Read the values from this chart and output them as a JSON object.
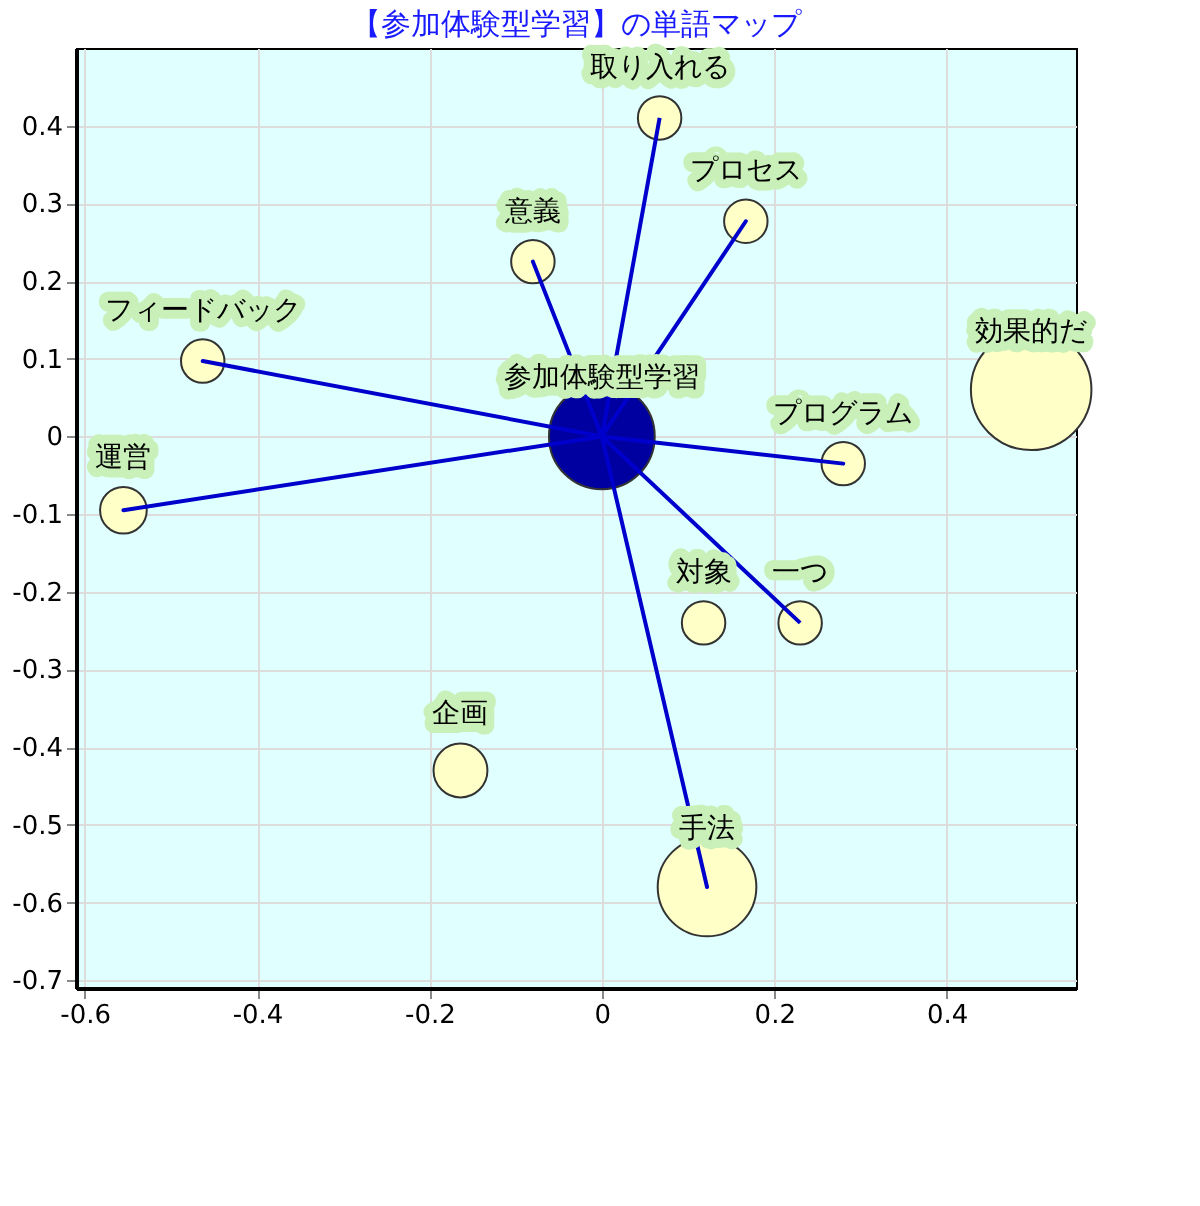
{
  "chart_data": {
    "type": "bubble",
    "title": "【参加体験型学習】の単語マップ",
    "xlim": [
      -0.61,
      0.55
    ],
    "ylim": [
      -0.71,
      0.5
    ],
    "xticks": [
      -0.6,
      -0.4,
      -0.2,
      {
        "value": 0,
        "label": "0"
      },
      0.2,
      0.4
    ],
    "yticks": [
      -0.7,
      -0.6,
      -0.5,
      -0.4,
      -0.3,
      -0.2,
      -0.1,
      {
        "value": 0,
        "label": "0"
      },
      0.1,
      0.2,
      0.3,
      0.4
    ],
    "grid": true,
    "legend": false,
    "series": [
      {
        "x": [
          0,
          0.067,
          0.167,
          -0.08,
          -0.463,
          -0.555,
          0.498,
          0.28,
          0.118,
          0.23,
          -0.164,
          0.122
        ],
        "values": [
          0,
          0.41,
          0.277,
          0.225,
          0.097,
          -0.095,
          0.06,
          -0.035,
          -0.24,
          -0.24,
          -0.43,
          -0.58
        ],
        "sizes": [
          0.77,
          0.13,
          0.13,
          0.13,
          0.13,
          0.15,
          1,
          0.13,
          0.13,
          0.13,
          0.2,
          0.67
        ],
        "colors": [
          "#0000a0",
          "#ffffc8",
          "#ffffc8",
          "#ffffc8",
          "#ffffc8",
          "#ffffc8",
          "#ffffc8",
          "#ffffc8",
          "#ffffc8",
          "#ffffc8",
          "#ffffc8",
          "#ffffc8"
        ]
      },
      {
        "type": "line",
        "color": "#0000cc",
        "x": [
          0.067,
          0,
          0.122,
          0,
          0.167,
          0,
          -0.08,
          0,
          -0.463,
          0,
          -0.555,
          0,
          0.28,
          0,
          0.23
        ],
        "values": [
          0.41,
          0,
          -0.58,
          0,
          0.277,
          0,
          0.225,
          0,
          0.097,
          0,
          -0.095,
          0,
          -0.035,
          0,
          -0.24
        ]
      }
    ],
    "annotations": [
      {
        "text": "参加体験型学習",
        "x": 0,
        "y": 0
      },
      {
        "text": "取り入れる",
        "x": 0.067,
        "y": 0.41
      },
      {
        "text": "プロセス",
        "x": 0.167,
        "y": 0.277
      },
      {
        "text": "意義",
        "x": -0.08,
        "y": 0.225
      },
      {
        "text": "フィードバック",
        "x": -0.463,
        "y": 0.097
      },
      {
        "text": "運営",
        "x": -0.555,
        "y": -0.095
      },
      {
        "text": "効果的だ",
        "x": 0.498,
        "y": 0.06
      },
      {
        "text": "プログラム",
        "x": 0.28,
        "y": -0.035
      },
      {
        "text": "対象",
        "x": 0.118,
        "y": -0.24
      },
      {
        "text": "一つ",
        "x": 0.23,
        "y": -0.24
      },
      {
        "text": "企画",
        "x": -0.164,
        "y": -0.43
      },
      {
        "text": "手法",
        "x": 0.122,
        "y": -0.58
      }
    ]
  }
}
